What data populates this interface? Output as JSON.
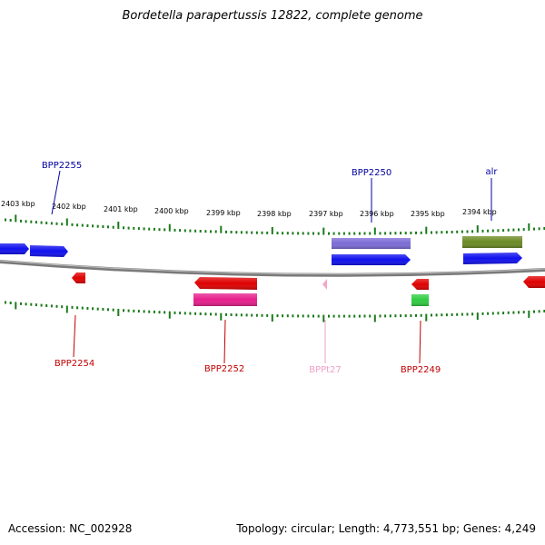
{
  "title": "Bordetella parapertussis 12822, complete genome",
  "footer": {
    "accession": "Accession: NC_002928",
    "topology": "Topology: circular; Length: 4,773,551 bp; Genes: 4,249"
  },
  "ruler_labels": [
    "2403 kbp",
    "2402 kbp",
    "2401 kbp",
    "2400 kbp",
    "2399 kbp",
    "2398 kbp",
    "2397 kbp",
    "2396 kbp",
    "2395 kbp",
    "2394 kbp"
  ],
  "gene_labels": {
    "BPP2255": "BPP2255",
    "BPP2250": "BPP2250",
    "alr": "alr",
    "BPP2254": "BPP2254",
    "BPP2252": "BPP2252",
    "BPPt27": "BPPt27",
    "BPP2249": "BPP2249"
  },
  "colors": {
    "blue": "#1010ee",
    "purple": "#7b6bd6",
    "olive": "#6b8a23",
    "red": "#e00000",
    "pink": "#e61e8c",
    "lightpink": "#f2a6c8",
    "green": "#2ecc40",
    "tick": "#1a7a1a",
    "backbone": "#888888",
    "label_blue": "#00009e",
    "label_red": "#c00000",
    "label_pink": "#f0a0c8"
  }
}
